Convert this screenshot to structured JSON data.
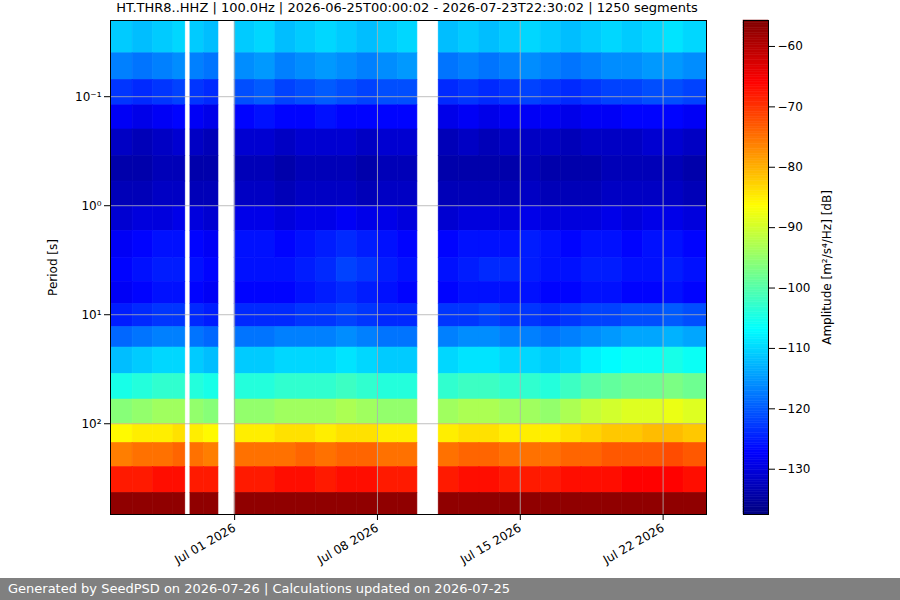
{
  "chart_data": {
    "type": "heatmap",
    "title": "HT.THR8..HHZ | 100.0Hz | 2026-06-25T00:00:02 - 2026-07-23T22:30:02 | 1250 segments",
    "caption": "Generated by SeedPSD on 2026-07-26 | Calculations updated on 2026-07-25",
    "ylabel": "Period [s]",
    "log": "y",
    "grid": true,
    "xlim": [
      "2026-06-24T22:00Z",
      "2026-07-24T03:00Z"
    ],
    "xticks": [
      {
        "value": "2026-07-01T00:00Z",
        "label": "Jul 01 2026"
      },
      {
        "value": "2026-07-08T00:00Z",
        "label": "Jul 08 2026"
      },
      {
        "value": "2026-07-15T00:00Z",
        "label": "Jul 15 2026"
      },
      {
        "value": "2026-07-22T00:00Z",
        "label": "Jul 22 2026"
      }
    ],
    "ylim": [
      0.02,
      680
    ],
    "yticks": [
      {
        "value": 0.1,
        "label": "10⁻¹"
      },
      {
        "value": 1,
        "label": "10⁰"
      },
      {
        "value": 10,
        "label": "10¹"
      },
      {
        "value": 100,
        "label": "10²"
      }
    ],
    "x_bins": [
      "2026-06-24T22:00Z",
      "2026-06-26T00:00Z",
      "2026-06-27T00:00Z",
      "2026-06-28T00:00Z",
      "2026-06-28T14:00Z",
      "2026-06-28T20:00Z",
      "2026-06-29T12:00Z",
      "2026-06-30T05:00Z",
      "2026-07-01T00:00Z",
      "2026-07-02T00:00Z",
      "2026-07-03T00:00Z",
      "2026-07-04T00:00Z",
      "2026-07-05T00:00Z",
      "2026-07-06T00:00Z",
      "2026-07-07T00:00Z",
      "2026-07-08T00:00Z",
      "2026-07-09T00:00Z",
      "2026-07-09T23:00Z",
      "2026-07-11T00:00Z",
      "2026-07-12T00:00Z",
      "2026-07-13T00:00Z",
      "2026-07-14T00:00Z",
      "2026-07-15T00:00Z",
      "2026-07-16T00:00Z",
      "2026-07-17T00:00Z",
      "2026-07-18T00:00Z",
      "2026-07-19T00:00Z",
      "2026-07-20T00:00Z",
      "2026-07-21T00:00Z",
      "2026-07-22T00:00Z",
      "2026-07-23T00:00Z",
      "2026-07-24T03:00Z"
    ],
    "y_bins": [
      0.02,
      0.04,
      0.07,
      0.12,
      0.2,
      0.35,
      0.6,
      1,
      1.7,
      3,
      5,
      8,
      13,
      20,
      35,
      60,
      100,
      150,
      250,
      430,
      680
    ],
    "values": [
      [
        -111,
        -112,
        -111,
        -110,
        null,
        -111,
        -112,
        null,
        -111,
        -110,
        -112,
        -111,
        -110,
        -111,
        -112,
        -111,
        -110,
        null,
        -112,
        -111,
        -112,
        -111,
        -110,
        -111,
        -112,
        -111,
        -110,
        -111,
        -110,
        -109,
        -110
      ],
      [
        -117,
        -118,
        -117,
        -116,
        null,
        -117,
        -118,
        null,
        -116,
        -115,
        -117,
        -116,
        -115,
        -116,
        -117,
        -116,
        -115,
        null,
        -118,
        -117,
        -118,
        -117,
        -116,
        -117,
        -118,
        -117,
        -116,
        -116,
        -115,
        -115,
        -116
      ],
      [
        -123,
        -124,
        -123,
        -122,
        null,
        -123,
        -124,
        null,
        -121,
        -120,
        -122,
        -121,
        -120,
        -121,
        -122,
        -121,
        -121,
        null,
        -124,
        -123,
        -124,
        -123,
        -122,
        -123,
        -124,
        -123,
        -122,
        -122,
        -121,
        -121,
        -122
      ],
      [
        -128,
        -129,
        -128,
        -127,
        null,
        -128,
        -129,
        null,
        -127,
        -126,
        -127,
        -127,
        -126,
        -127,
        -127,
        -127,
        -127,
        null,
        -129,
        -128,
        -129,
        -128,
        -128,
        -128,
        -129,
        -128,
        -128,
        -127,
        -127,
        -127,
        -128
      ],
      [
        -132,
        -133,
        -132,
        -131,
        null,
        -132,
        -133,
        null,
        -131,
        -131,
        -132,
        -131,
        -131,
        -131,
        -132,
        -131,
        -131,
        null,
        -133,
        -132,
        -133,
        -132,
        -132,
        -132,
        -133,
        -132,
        -132,
        -132,
        -131,
        -131,
        -132
      ],
      [
        -134,
        -134,
        -133,
        -133,
        null,
        -134,
        -134,
        null,
        -133,
        -133,
        -134,
        -133,
        -133,
        -133,
        -134,
        -133,
        -133,
        null,
        -134,
        -134,
        -134,
        -134,
        -133,
        -134,
        -134,
        -134,
        -133,
        -133,
        -133,
        -133,
        -134
      ],
      [
        -133,
        -133,
        -132,
        -132,
        null,
        -133,
        -133,
        null,
        -132,
        -132,
        -133,
        -132,
        -132,
        -132,
        -133,
        -132,
        -132,
        null,
        -133,
        -133,
        -133,
        -133,
        -132,
        -133,
        -133,
        -133,
        -132,
        -132,
        -132,
        -132,
        -133
      ],
      [
        -131,
        -130,
        -130,
        -129,
        null,
        -130,
        -131,
        null,
        -129,
        -129,
        -130,
        -129,
        -129,
        -128,
        -129,
        -129,
        -130,
        null,
        -131,
        -130,
        -130,
        -130,
        -129,
        -130,
        -130,
        -130,
        -129,
        -130,
        -129,
        -129,
        -130
      ],
      [
        -128,
        -127,
        -126,
        -126,
        null,
        -127,
        -128,
        null,
        -126,
        -126,
        -127,
        -126,
        -125,
        -124,
        -125,
        -126,
        -127,
        null,
        -127,
        -126,
        -126,
        -126,
        -125,
        -126,
        -127,
        -126,
        -126,
        -127,
        -126,
        -126,
        -127
      ],
      [
        -127,
        -126,
        -125,
        -125,
        null,
        -126,
        -127,
        null,
        -126,
        -126,
        -126,
        -125,
        -124,
        -122,
        -123,
        -125,
        -126,
        null,
        -126,
        -125,
        -124,
        -124,
        -125,
        -126,
        -126,
        -125,
        -125,
        -126,
        -126,
        -125,
        -126
      ],
      [
        -128,
        -127,
        -126,
        -126,
        null,
        -127,
        -128,
        null,
        -127,
        -127,
        -127,
        -126,
        -125,
        -124,
        -125,
        -126,
        -127,
        null,
        -127,
        -126,
        -126,
        -126,
        -126,
        -127,
        -127,
        -126,
        -126,
        -127,
        -127,
        -126,
        -127
      ],
      [
        -125,
        -124,
        -123,
        -123,
        null,
        -124,
        -125,
        null,
        -124,
        -124,
        -124,
        -123,
        -123,
        -122,
        -123,
        -124,
        -124,
        null,
        -123,
        -123,
        -122,
        -123,
        -123,
        -124,
        -123,
        -122,
        -122,
        -121,
        -121,
        -120,
        -121
      ],
      [
        -119,
        -118,
        -117,
        -117,
        null,
        -118,
        -119,
        null,
        -118,
        -118,
        -117,
        -117,
        -117,
        -116,
        -117,
        -118,
        -118,
        null,
        -117,
        -116,
        -116,
        -117,
        -117,
        -118,
        -117,
        -116,
        -115,
        -114,
        -114,
        -113,
        -114
      ],
      [
        -112,
        -111,
        -110,
        -110,
        null,
        -111,
        -112,
        null,
        -111,
        -111,
        -110,
        -110,
        -110,
        -109,
        -110,
        -111,
        -111,
        null,
        -110,
        -109,
        -109,
        -110,
        -110,
        -111,
        -110,
        -108,
        -107,
        -106,
        -106,
        -105,
        -106
      ],
      [
        -105,
        -104,
        -103,
        -103,
        null,
        -104,
        -105,
        null,
        -104,
        -104,
        -103,
        -103,
        -103,
        -102,
        -103,
        -104,
        -104,
        null,
        -103,
        -102,
        -102,
        -103,
        -103,
        -104,
        -102,
        -100,
        -99,
        -98,
        -98,
        -97,
        -98
      ],
      [
        -96,
        -95,
        -94,
        -94,
        null,
        -95,
        -96,
        null,
        -95,
        -95,
        -94,
        -94,
        -94,
        -93,
        -94,
        -95,
        -95,
        null,
        -94,
        -93,
        -93,
        -94,
        -94,
        -95,
        -93,
        -91,
        -90,
        -89,
        -89,
        -88,
        -89
      ],
      [
        -86,
        -85,
        -85,
        -84,
        null,
        -85,
        -86,
        null,
        -85,
        -85,
        -84,
        -84,
        -85,
        -84,
        -84,
        -85,
        -85,
        null,
        -85,
        -84,
        -84,
        -85,
        -85,
        -85,
        -84,
        -83,
        -82,
        -82,
        -81,
        -81,
        -82
      ],
      [
        -76,
        -75,
        -75,
        -74,
        null,
        -75,
        -76,
        null,
        -75,
        -75,
        -75,
        -74,
        -75,
        -74,
        -74,
        -75,
        -75,
        null,
        -75,
        -74,
        -74,
        -75,
        -75,
        -75,
        -74,
        -74,
        -73,
        -73,
        -73,
        -72,
        -73
      ],
      [
        -68,
        -68,
        -67,
        -67,
        null,
        -68,
        -68,
        null,
        -68,
        -68,
        -67,
        -67,
        -68,
        -67,
        -67,
        -68,
        -68,
        null,
        -68,
        -67,
        -67,
        -68,
        -68,
        -68,
        -67,
        -67,
        -67,
        -66,
        -66,
        -66,
        -67
      ],
      [
        -57,
        -57,
        -57,
        -57,
        null,
        -57,
        -57,
        null,
        -57,
        -57,
        -57,
        -57,
        -57,
        -57,
        -57,
        -57,
        -57,
        null,
        -57,
        -57,
        -57,
        -57,
        -57,
        -57,
        -57,
        -57,
        -57,
        -57,
        -57,
        -57,
        -57
      ]
    ],
    "colorbar": {
      "label": "Amplitude [m²/s⁴/Hz] [dB]",
      "lim": [
        -137.5,
        -55.7
      ],
      "ticks": [
        -130,
        -120,
        -110,
        -100,
        -90,
        -80,
        -70,
        -60
      ]
    }
  }
}
